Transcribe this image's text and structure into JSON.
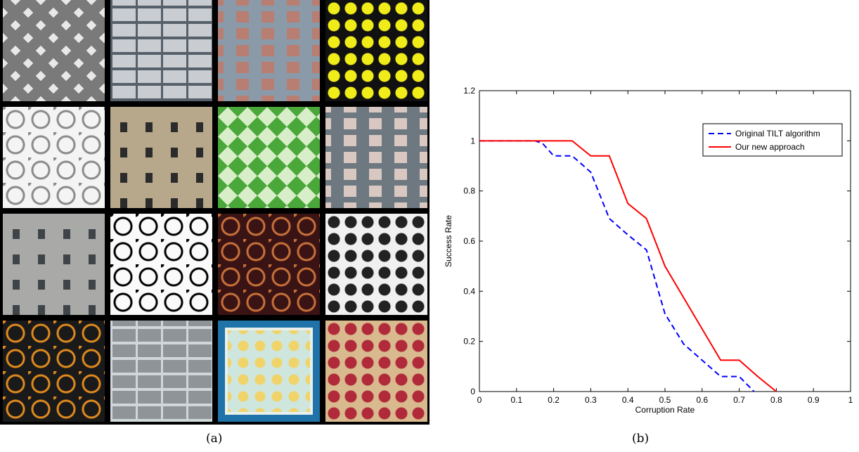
{
  "captions": {
    "a": "(a)",
    "b": "(b)"
  },
  "tiles": [
    {
      "name": "star-tile-pattern",
      "bg": "#e8e8e8",
      "fg": "#7a7a7a",
      "kind": "star"
    },
    {
      "name": "office-facade-photo",
      "bg": "#c9ccd0",
      "fg": "#55606a",
      "kind": "facade"
    },
    {
      "name": "brick-building-photo",
      "bg": "#b97e72",
      "fg": "#8a9aa8",
      "kind": "windows"
    },
    {
      "name": "yellow-green-circle-pattern",
      "bg": "#111",
      "fg": "#f0ec1a",
      "kind": "dots"
    },
    {
      "name": "white-ornament-pattern",
      "bg": "#f4f4f4",
      "fg": "#8a8a8a",
      "kind": "rings"
    },
    {
      "name": "stone-tile-photo",
      "bg": "#b7a88c",
      "fg": "#2b2b2b",
      "kind": "squares"
    },
    {
      "name": "green-diamond-pattern",
      "bg": "#d8eec8",
      "fg": "#4aa83a",
      "kind": "diamond"
    },
    {
      "name": "pink-building-photo",
      "bg": "#d9c8c2",
      "fg": "#6d7880",
      "kind": "windows"
    },
    {
      "name": "grey-building-photo",
      "bg": "#a9aaa8",
      "fg": "#3e4448",
      "kind": "squares"
    },
    {
      "name": "black-lace-pattern",
      "bg": "#fafafa",
      "fg": "#000",
      "kind": "rings"
    },
    {
      "name": "dark-circle-pattern",
      "bg": "#3a1414",
      "fg": "#c8703a",
      "kind": "rings"
    },
    {
      "name": "spiral-pattern",
      "bg": "#f0f0f0",
      "fg": "#222",
      "kind": "dots"
    },
    {
      "name": "orange-ornament-pattern",
      "bg": "#1a1a1a",
      "fg": "#e08a1e",
      "kind": "rings"
    },
    {
      "name": "glass-facade-photo",
      "bg": "#8e9498",
      "fg": "#d0d6da",
      "kind": "facade"
    },
    {
      "name": "framed-star-pattern",
      "bg": "#1f73a8",
      "fg": "#f0d46a",
      "kind": "framed"
    },
    {
      "name": "red-damask-pattern",
      "bg": "#d9b98e",
      "fg": "#b02a3a",
      "kind": "dots"
    }
  ],
  "chart_data": {
    "type": "line",
    "title": "",
    "xlabel": "Corruption Rate",
    "ylabel": "Success Rate",
    "xlim": [
      0,
      1
    ],
    "ylim": [
      0,
      1.2
    ],
    "xticks": [
      "0",
      "0.1",
      "0.2",
      "0.3",
      "0.4",
      "0.5",
      "0.6",
      "0.7",
      "0.8",
      "0.9",
      "1"
    ],
    "yticks": [
      "0",
      "0.2",
      "0.4",
      "0.6",
      "0.8",
      "1",
      "1.2"
    ],
    "legend_position": "top-right",
    "grid": false,
    "series": [
      {
        "name": "Original TILT algorithm",
        "color": "#0000ff",
        "dash": "dashed",
        "x": [
          0,
          0.05,
          0.1,
          0.15,
          0.17,
          0.2,
          0.25,
          0.3,
          0.35,
          0.4,
          0.45,
          0.5,
          0.55,
          0.6,
          0.65,
          0.7,
          0.74
        ],
        "y": [
          1,
          1,
          1,
          1,
          0.99,
          0.94,
          0.94,
          0.875,
          0.69,
          0.625,
          0.565,
          0.31,
          0.19,
          0.125,
          0.06,
          0.06,
          0
        ]
      },
      {
        "name": "Our new approach",
        "color": "#ff0000",
        "dash": "solid",
        "x": [
          0,
          0.05,
          0.1,
          0.15,
          0.2,
          0.25,
          0.3,
          0.35,
          0.4,
          0.45,
          0.5,
          0.55,
          0.6,
          0.65,
          0.7,
          0.75,
          0.8
        ],
        "y": [
          1,
          1,
          1,
          1,
          1,
          1,
          0.94,
          0.94,
          0.75,
          0.69,
          0.5,
          0.375,
          0.25,
          0.125,
          0.125,
          0.06,
          0
        ]
      }
    ]
  }
}
